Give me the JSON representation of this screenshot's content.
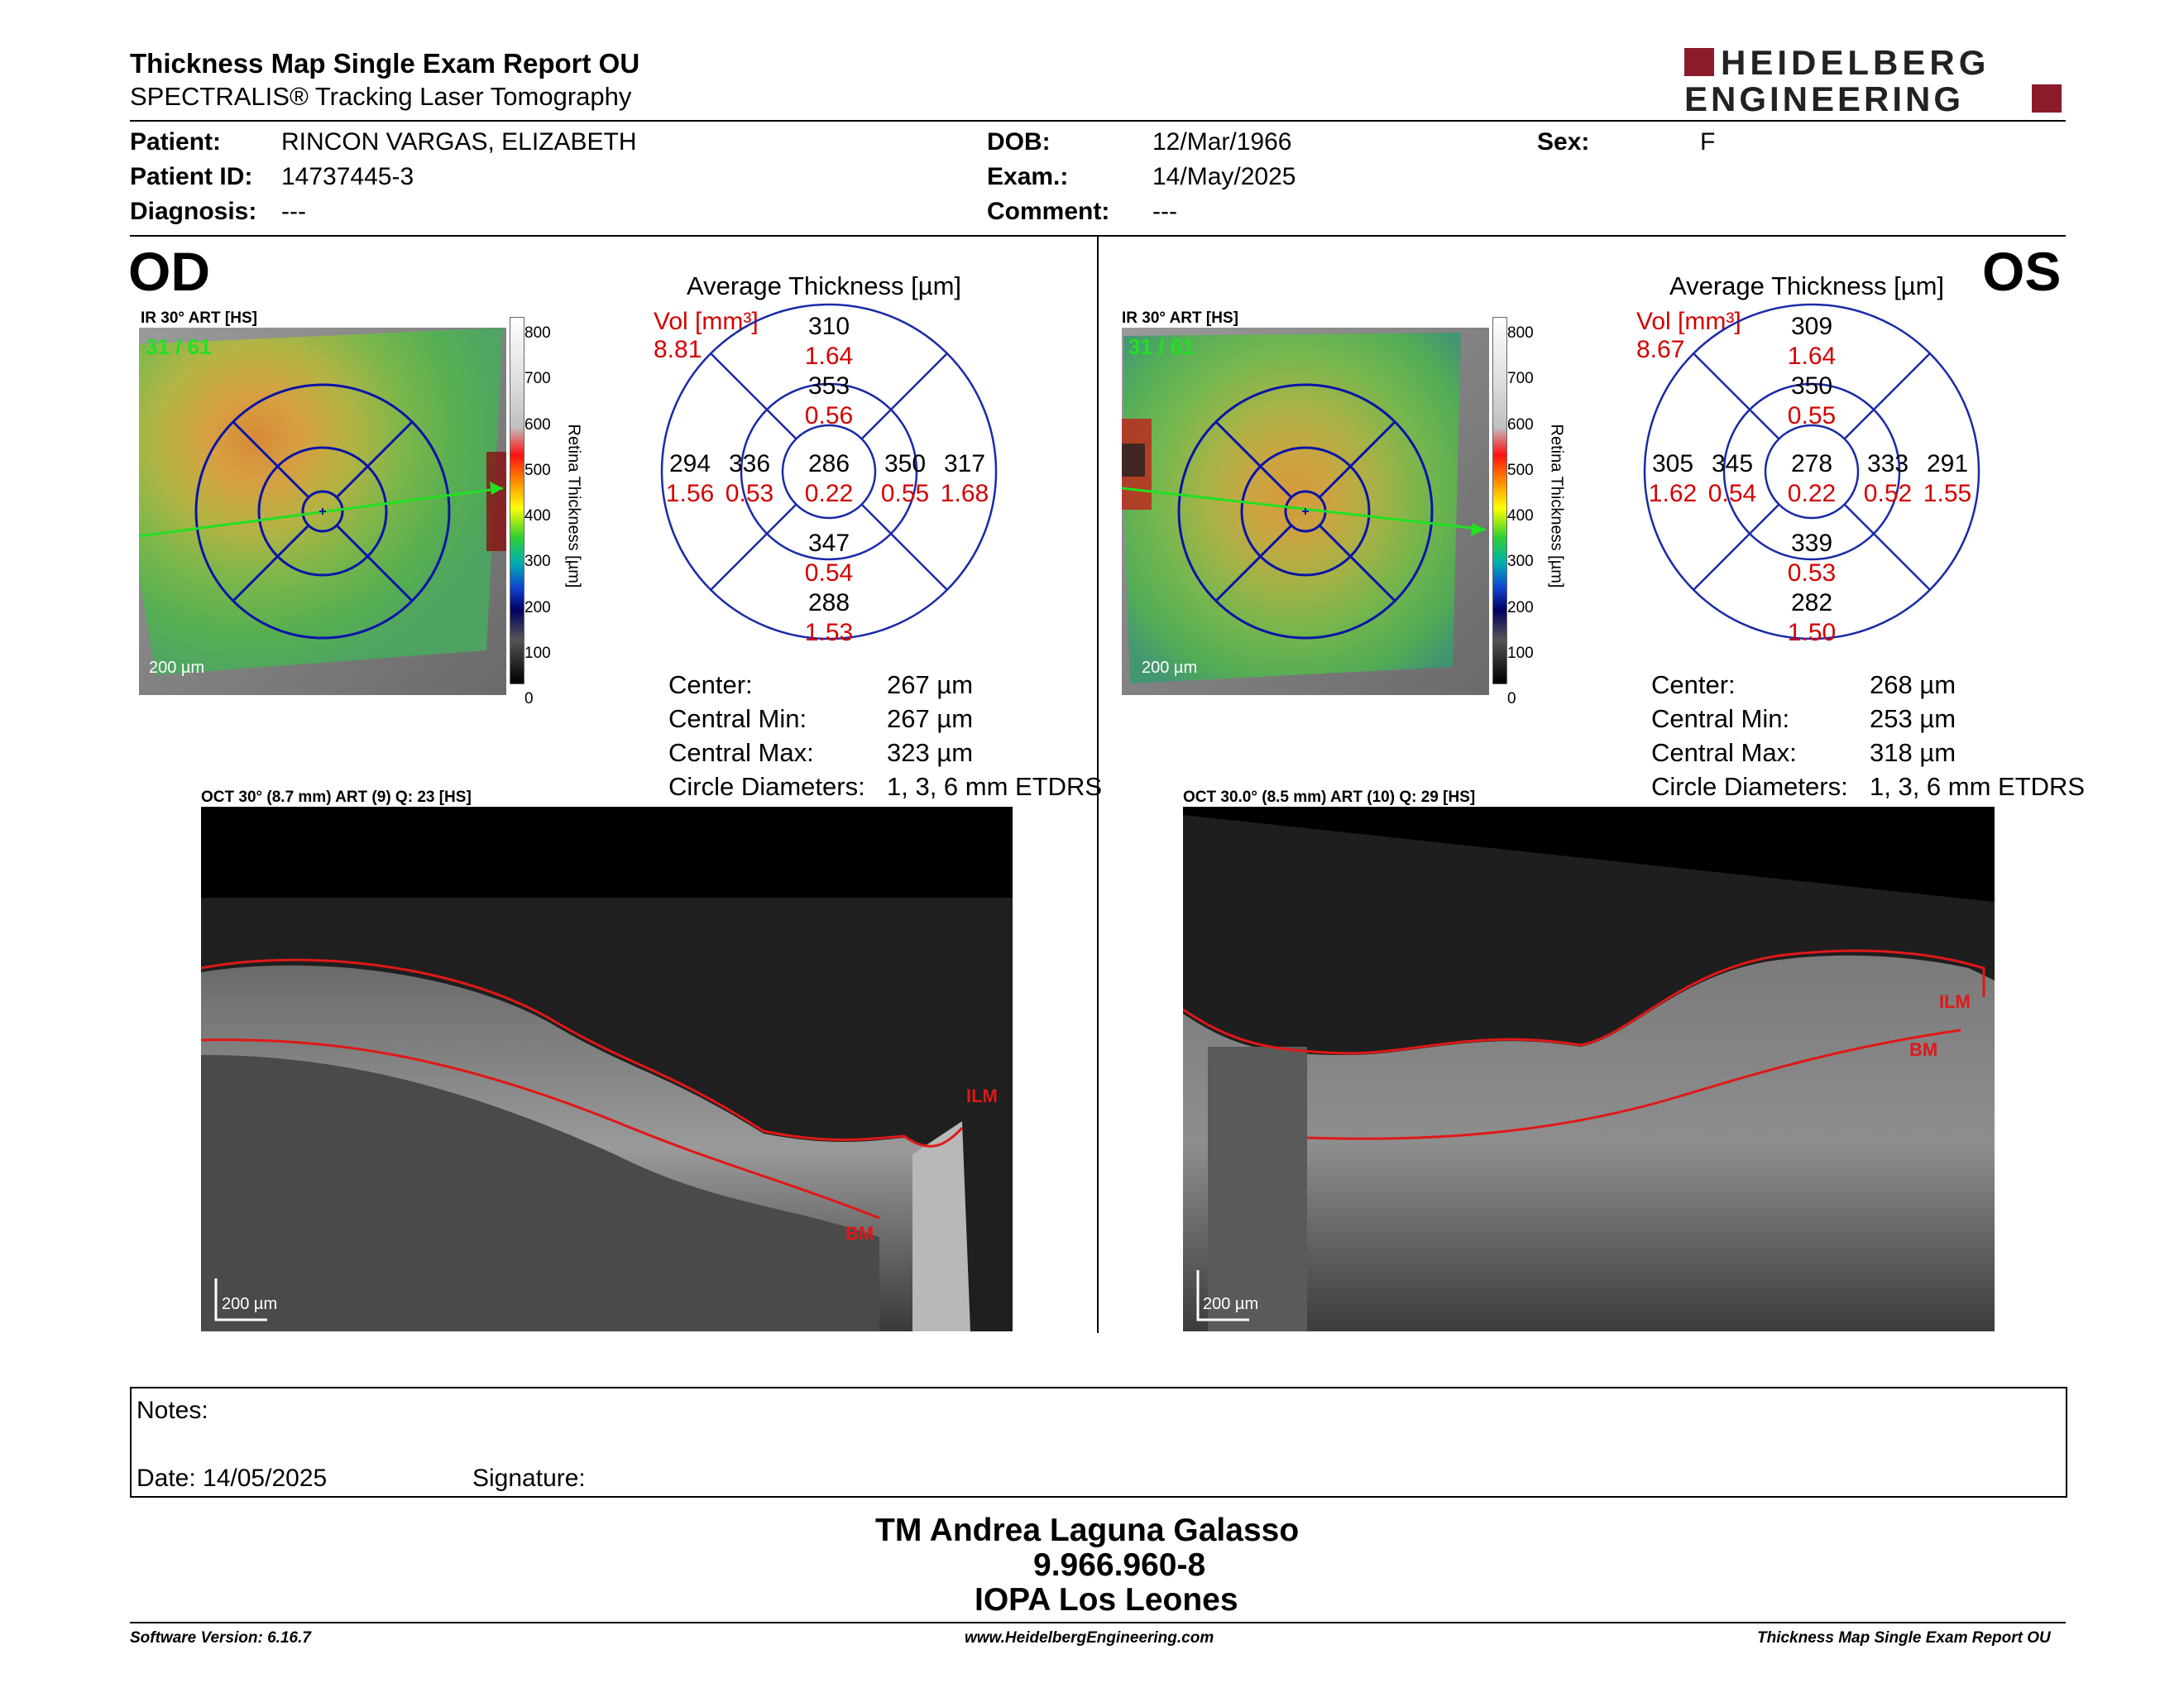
{
  "header": {
    "title": "Thickness Map Single Exam Report OU",
    "subtitle": "SPECTRALIS® Tracking Laser Tomography",
    "logo_line1": "HEIDELBERG",
    "logo_line2": "ENGINEERING",
    "logo_color": "#8b1a2b"
  },
  "patient": {
    "name_label": "Patient:",
    "name": "RINCON VARGAS, ELIZABETH",
    "id_label": "Patient ID:",
    "id": "14737445-3",
    "diagnosis_label": "Diagnosis:",
    "diagnosis": "---",
    "dob_label": "DOB:",
    "dob": "12/Mar/1966",
    "exam_label": "Exam.:",
    "exam": "14/May/2025",
    "comment_label": "Comment:",
    "comment": "---",
    "sex_label": "Sex:",
    "sex": "F"
  },
  "scale": {
    "ticks": [
      "800",
      "700",
      "600",
      "500",
      "400",
      "300",
      "200",
      "100",
      "0"
    ],
    "label": "Retina Thickness [µm]"
  },
  "od": {
    "eye": "OD",
    "ir_title": "IR 30° ART [HS]",
    "frame": "31 / 61",
    "ir_scale": "200 µm",
    "avg_title": "Average Thickness [µm]",
    "vol_label": "Vol [mm³]",
    "vol_total": "8.81",
    "sectors": {
      "outer_sup": "310",
      "outer_sup_vol": "1.64",
      "inner_sup": "353",
      "inner_sup_vol": "0.56",
      "outer_left": "294",
      "outer_left_vol": "1.56",
      "inner_left": "336",
      "inner_left_vol": "0.53",
      "center": "286",
      "center_vol": "0.22",
      "inner_right": "350",
      "inner_right_vol": "0.55",
      "outer_right": "317",
      "outer_right_vol": "1.68",
      "inner_inf": "347",
      "inner_inf_vol": "0.54",
      "outer_inf": "288",
      "outer_inf_vol": "1.53"
    },
    "stats": {
      "center_label": "Center:",
      "center": "267 µm",
      "min_label": "Central Min:",
      "min": "267 µm",
      "max_label": "Central Max:",
      "max": "323 µm",
      "diam_label": "Circle Diameters:",
      "diam": "1, 3, 6 mm ETDRS"
    },
    "oct_title": "OCT 30° (8.7 mm) ART (9) Q: 23 [HS]",
    "oct_scale": "200 µm",
    "ilm": "ILM",
    "bm": "BM"
  },
  "os": {
    "eye": "OS",
    "ir_title": "IR 30° ART [HS]",
    "frame": "31 / 61",
    "ir_scale": "200 µm",
    "avg_title": "Average Thickness [µm]",
    "vol_label": "Vol [mm³]",
    "vol_total": "8.67",
    "sectors": {
      "outer_sup": "309",
      "outer_sup_vol": "1.64",
      "inner_sup": "350",
      "inner_sup_vol": "0.55",
      "outer_left": "305",
      "outer_left_vol": "1.62",
      "inner_left": "345",
      "inner_left_vol": "0.54",
      "center": "278",
      "center_vol": "0.22",
      "inner_right": "333",
      "inner_right_vol": "0.52",
      "outer_right": "291",
      "outer_right_vol": "1.55",
      "inner_inf": "339",
      "inner_inf_vol": "0.53",
      "outer_inf": "282",
      "outer_inf_vol": "1.50"
    },
    "stats": {
      "center_label": "Center:",
      "center": "268 µm",
      "min_label": "Central Min:",
      "min": "253 µm",
      "max_label": "Central Max:",
      "max": "318 µm",
      "diam_label": "Circle Diameters:",
      "diam": "1, 3, 6 mm ETDRS"
    },
    "oct_title": "OCT 30.0° (8.5 mm) ART (10) Q: 29 [HS]",
    "oct_scale": "200 µm",
    "ilm": "ILM",
    "bm": "BM"
  },
  "notes": {
    "notes_label": "Notes:",
    "date_label": "Date: 14/05/2025",
    "signature_label": "Signature:"
  },
  "signature": {
    "name": "TM Andrea Laguna Galasso",
    "number": "9.966.960-8",
    "institution": "IOPA Los Leones"
  },
  "footer": {
    "software": "Software Version: 6.16.7",
    "website": "www.HeidelbergEngineering.com",
    "report": "Thickness Map Single Exam Report OU"
  }
}
